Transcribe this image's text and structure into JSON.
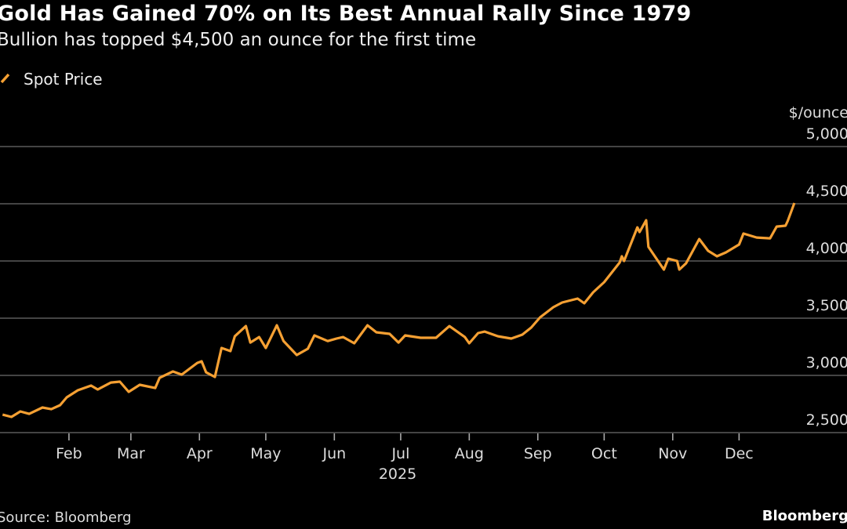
{
  "header": {
    "title": "Gold Has Gained 70% on Its Best Annual Rally Since 1979",
    "subtitle": "Bullion has topped $4,500 an ounce for the first time"
  },
  "footer": {
    "source": "Source: Bloomberg",
    "brand": "Bloomberg"
  },
  "colors": {
    "background": "#000000",
    "line": "#f5a033",
    "grid": "#5a5a5a"
  },
  "chart_data": {
    "type": "line",
    "title": "Gold Has Gained 70% on Its Best Annual Rally Since 1979",
    "subtitle": "Bullion has topped $4,500 an ounce for the first time",
    "ylabel": "$/ounce",
    "xlabel": "2025",
    "ylim": [
      2500,
      5000
    ],
    "y_ticks": [
      2500,
      3000,
      3500,
      4000,
      4500,
      5000
    ],
    "y_tick_labels": [
      "2,500",
      "3,000",
      "3,500",
      "4,000",
      "4,500",
      "5,000"
    ],
    "y_axis_position": "right",
    "x_ticks": [
      "2025-02-01",
      "2025-03-01",
      "2025-04-01",
      "2025-05-01",
      "2025-06-01",
      "2025-07-01",
      "2025-08-01",
      "2025-09-01",
      "2025-10-01",
      "2025-11-01",
      "2025-12-01"
    ],
    "x_tick_labels": [
      "Feb",
      "Mar",
      "Apr",
      "May",
      "Jun",
      "Jul",
      "Aug",
      "Sep",
      "Oct",
      "Nov",
      "Dec"
    ],
    "grid": "horizontal",
    "legend_position": "top-left",
    "series": [
      {
        "name": "Spot Price",
        "color": "#f5a033",
        "points": [
          [
            "2025-01-02",
            2657
          ],
          [
            "2025-01-06",
            2637
          ],
          [
            "2025-01-10",
            2685
          ],
          [
            "2025-01-14",
            2664
          ],
          [
            "2025-01-20",
            2719
          ],
          [
            "2025-01-24",
            2705
          ],
          [
            "2025-01-28",
            2740
          ],
          [
            "2025-01-31",
            2808
          ],
          [
            "2025-02-05",
            2870
          ],
          [
            "2025-02-11",
            2911
          ],
          [
            "2025-02-14",
            2877
          ],
          [
            "2025-02-20",
            2938
          ],
          [
            "2025-02-24",
            2945
          ],
          [
            "2025-02-28",
            2856
          ],
          [
            "2025-03-05",
            2918
          ],
          [
            "2025-03-12",
            2890
          ],
          [
            "2025-03-14",
            2979
          ],
          [
            "2025-03-20",
            3034
          ],
          [
            "2025-03-24",
            3007
          ],
          [
            "2025-03-31",
            3109
          ],
          [
            "2025-04-02",
            3123
          ],
          [
            "2025-04-04",
            3027
          ],
          [
            "2025-04-08",
            2986
          ],
          [
            "2025-04-11",
            3240
          ],
          [
            "2025-04-15",
            3212
          ],
          [
            "2025-04-17",
            3342
          ],
          [
            "2025-04-22",
            3431
          ],
          [
            "2025-04-24",
            3287
          ],
          [
            "2025-04-28",
            3335
          ],
          [
            "2025-05-01",
            3240
          ],
          [
            "2025-05-06",
            3438
          ],
          [
            "2025-05-09",
            3301
          ],
          [
            "2025-05-15",
            3178
          ],
          [
            "2025-05-20",
            3233
          ],
          [
            "2025-05-23",
            3349
          ],
          [
            "2025-05-29",
            3300
          ],
          [
            "2025-06-02",
            3322
          ],
          [
            "2025-06-05",
            3335
          ],
          [
            "2025-06-10",
            3281
          ],
          [
            "2025-06-16",
            3438
          ],
          [
            "2025-06-20",
            3377
          ],
          [
            "2025-06-26",
            3363
          ],
          [
            "2025-06-30",
            3287
          ],
          [
            "2025-07-03",
            3349
          ],
          [
            "2025-07-10",
            3329
          ],
          [
            "2025-07-17",
            3329
          ],
          [
            "2025-07-23",
            3431
          ],
          [
            "2025-07-30",
            3335
          ],
          [
            "2025-08-01",
            3281
          ],
          [
            "2025-08-05",
            3370
          ],
          [
            "2025-08-08",
            3383
          ],
          [
            "2025-08-14",
            3342
          ],
          [
            "2025-08-20",
            3322
          ],
          [
            "2025-08-25",
            3356
          ],
          [
            "2025-08-29",
            3418
          ],
          [
            "2025-09-02",
            3507
          ],
          [
            "2025-09-08",
            3596
          ],
          [
            "2025-09-12",
            3637
          ],
          [
            "2025-09-19",
            3671
          ],
          [
            "2025-09-22",
            3630
          ],
          [
            "2025-09-26",
            3726
          ],
          [
            "2025-10-01",
            3815
          ],
          [
            "2025-10-08",
            3986
          ],
          [
            "2025-10-09",
            4041
          ],
          [
            "2025-10-10",
            4000
          ],
          [
            "2025-10-16",
            4294
          ],
          [
            "2025-10-17",
            4253
          ],
          [
            "2025-10-20",
            4356
          ],
          [
            "2025-10-21",
            4123
          ],
          [
            "2025-10-28",
            3925
          ],
          [
            "2025-10-30",
            4020
          ],
          [
            "2025-11-03",
            4000
          ],
          [
            "2025-11-04",
            3925
          ],
          [
            "2025-11-07",
            3979
          ],
          [
            "2025-11-13",
            4192
          ],
          [
            "2025-11-17",
            4089
          ],
          [
            "2025-11-21",
            4041
          ],
          [
            "2025-11-25",
            4075
          ],
          [
            "2025-12-01",
            4144
          ],
          [
            "2025-12-03",
            4240
          ],
          [
            "2025-12-09",
            4205
          ],
          [
            "2025-12-15",
            4198
          ],
          [
            "2025-12-18",
            4301
          ],
          [
            "2025-12-22",
            4308
          ],
          [
            "2025-12-23",
            4349
          ],
          [
            "2025-12-26",
            4507
          ]
        ]
      }
    ]
  }
}
